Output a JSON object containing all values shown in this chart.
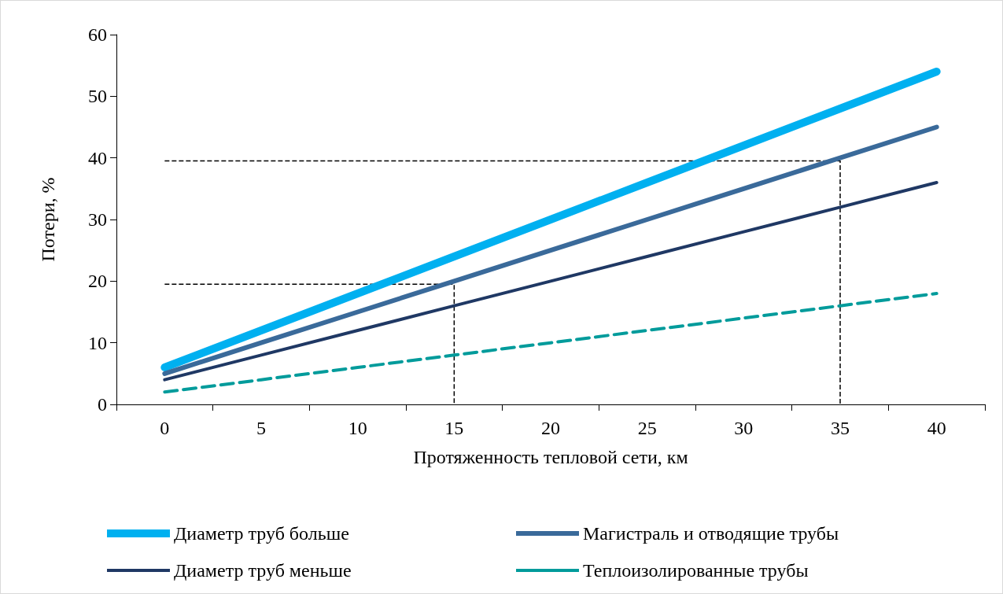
{
  "chart_data": {
    "type": "line",
    "xlabel": "Протяженность тепловой сети, км",
    "ylabel": "Потери, %",
    "categories": [
      "0",
      "5",
      "10",
      "15",
      "20",
      "25",
      "30",
      "35",
      "40"
    ],
    "ylim": [
      0,
      60
    ],
    "yticks": [
      0,
      10,
      20,
      30,
      40,
      50,
      60
    ],
    "grid": false,
    "legend": "bottom",
    "marker": "none",
    "series": [
      {
        "name": "Диаметр труб больше",
        "color": "#00b0f0",
        "values": [
          6,
          12,
          18,
          24,
          30,
          36,
          42,
          48,
          54
        ]
      },
      {
        "name": "Магистраль и отводящие трубы",
        "color": "#3a6a9a",
        "values": [
          5,
          10,
          15,
          20,
          25,
          30,
          35,
          40,
          45
        ]
      },
      {
        "name": "Диаметр труб меньше",
        "color": "#1f3864",
        "values": [
          4,
          8,
          12,
          16,
          20,
          24,
          28,
          32,
          36
        ]
      },
      {
        "name": "Теплоизолированные трубы",
        "color": "#009b9b",
        "line_style": "dashed",
        "values": [
          2,
          4,
          6,
          8,
          10,
          12,
          14,
          16,
          18
        ]
      },
      {
        "color": "#000000",
        "line_style": "dashed",
        "x": [
          "0",
          "15",
          "15"
        ],
        "values": [
          19.5,
          19.5,
          0
        ]
      },
      {
        "color": "#000000",
        "line_style": "dashed",
        "x": [
          "0",
          "35",
          "35"
        ],
        "values": [
          39.5,
          39.5,
          0
        ]
      }
    ]
  }
}
